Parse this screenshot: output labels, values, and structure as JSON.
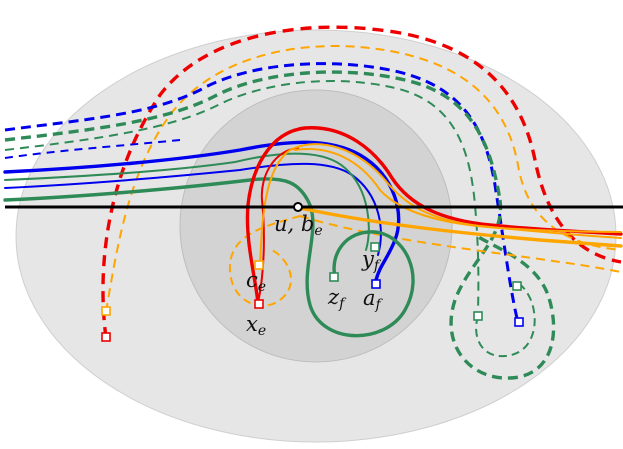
{
  "labels": {
    "u_be": "u, b",
    "u_be_sub": "e",
    "c_e": "c",
    "c_e_sub": "e",
    "x_e": "x",
    "x_e_sub": "e",
    "y_f": "y",
    "y_f_sub": "f",
    "z_f": "z",
    "z_f_sub": "f",
    "a_f": "a",
    "a_f_sub": "f"
  },
  "colors": {
    "outer_region": "#e6e6e6",
    "inner_region": "#d3d3d3",
    "red": "#ee0000",
    "blue": "#0000ee",
    "green": "#2e8b57",
    "orange": "#ffa500",
    "axis": "#000000"
  }
}
